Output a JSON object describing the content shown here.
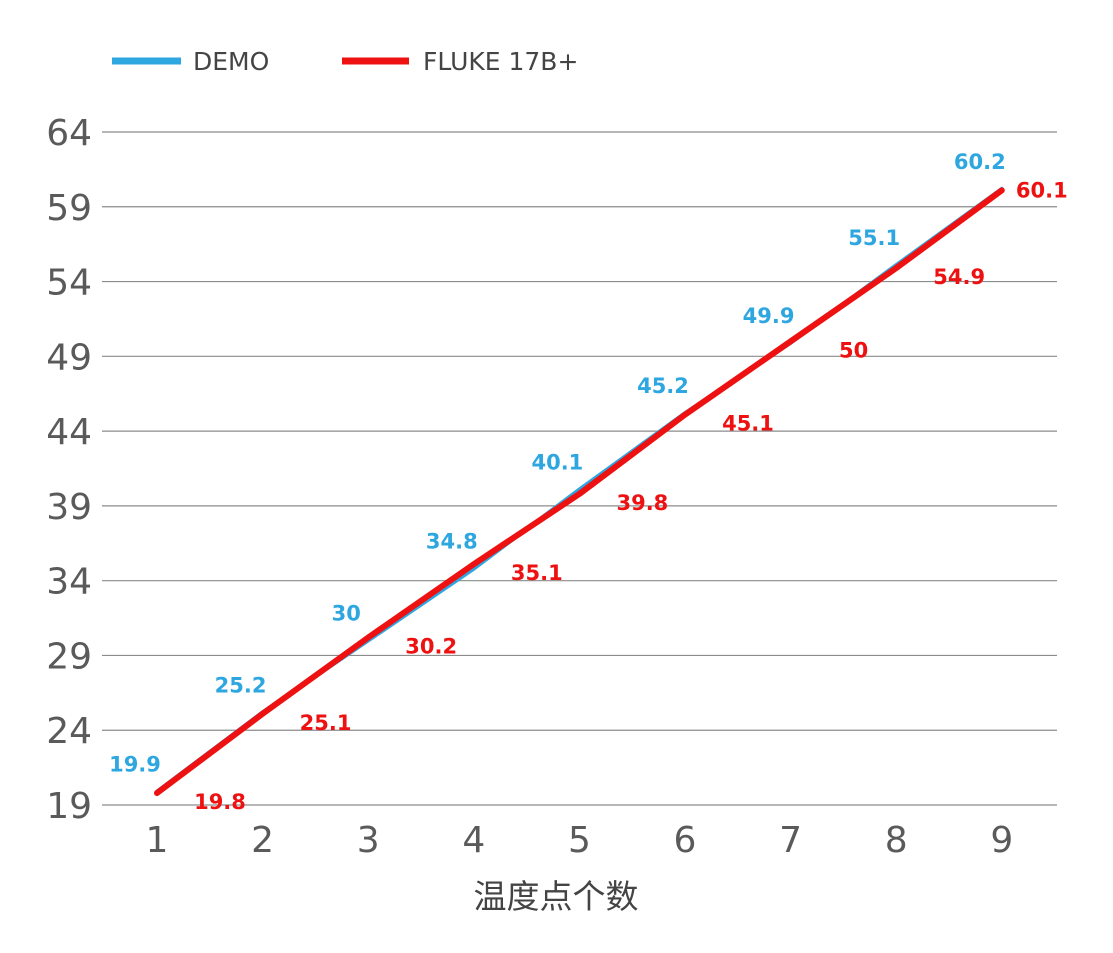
{
  "chart_data": {
    "type": "line",
    "title": "",
    "xlabel": "温度点个数",
    "ylabel": "",
    "x": [
      1,
      2,
      3,
      4,
      5,
      6,
      7,
      8,
      9
    ],
    "x_tick_labels": [
      "1",
      "2",
      "3",
      "4",
      "5",
      "6",
      "7",
      "8",
      "9"
    ],
    "y_ticks": [
      19,
      24,
      29,
      34,
      39,
      44,
      49,
      54,
      59,
      64
    ],
    "y_tick_labels": [
      "19",
      "24",
      "29",
      "34",
      "39",
      "44",
      "49",
      "54",
      "59",
      "64"
    ],
    "ylim": [
      19,
      64
    ],
    "grid": "horizontal",
    "legend_position": "top-left",
    "series": [
      {
        "name": "DEMO",
        "color": "#2ea7e0",
        "values": [
          19.9,
          25.2,
          30,
          34.8,
          40.1,
          45.2,
          49.9,
          55.1,
          60.2
        ],
        "labels": [
          "19.9",
          "25.2",
          "30",
          "34.8",
          "40.1",
          "45.2",
          "49.9",
          "55.1",
          "60.2"
        ]
      },
      {
        "name": "FLUKE 17B+",
        "color": "#ee1111",
        "values": [
          19.8,
          25.1,
          30.2,
          35.1,
          39.8,
          45.1,
          50,
          54.9,
          60.1
        ],
        "labels": [
          "19.8",
          "25.1",
          "30.2",
          "35.1",
          "39.8",
          "45.1",
          "50",
          "54.9",
          "60.1"
        ]
      }
    ]
  }
}
